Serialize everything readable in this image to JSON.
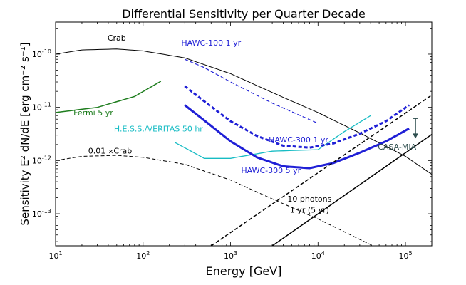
{
  "chart_data": {
    "type": "line",
    "title": "Differential Sensitivity per Quarter Decade",
    "xlabel": "Energy [GeV]",
    "ylabel": "Sensitivity E² dN/dE [erg cm⁻² s⁻¹]",
    "xscale": "log",
    "yscale": "log",
    "xlim": [
      10,
      200000
    ],
    "ylim": [
      2.5e-14,
      4e-10
    ],
    "x_ticks": [
      {
        "value": 10,
        "base": "10",
        "exp": "1"
      },
      {
        "value": 100,
        "base": "10",
        "exp": "2"
      },
      {
        "value": 1000,
        "base": "10",
        "exp": "3"
      },
      {
        "value": 10000,
        "base": "10",
        "exp": "4"
      },
      {
        "value": 100000,
        "base": "10",
        "exp": "5"
      }
    ],
    "y_ticks": [
      {
        "value": 1e-13,
        "base": "10",
        "exp": "-13"
      },
      {
        "value": 1e-12,
        "base": "10",
        "exp": "-12"
      },
      {
        "value": 1e-11,
        "base": "10",
        "exp": "-11"
      },
      {
        "value": 1e-10,
        "base": "10",
        "exp": "-10"
      }
    ],
    "series": [
      {
        "name": "Crab",
        "color": "#000000",
        "dash": "solid",
        "width": 1,
        "x": [
          10,
          20,
          50,
          100,
          300,
          1000,
          3000,
          10000,
          30000,
          100000,
          200000
        ],
        "y": [
          1e-10,
          1.2e-10,
          1.25e-10,
          1.15e-10,
          8.5e-11,
          4.3e-11,
          1.9e-11,
          8e-12,
          3.3e-12,
          1.2e-12,
          5.5e-13
        ]
      },
      {
        "name": "0.01 × Crab",
        "color": "#000000",
        "dash": "dashed",
        "width": 1,
        "x": [
          10,
          20,
          50,
          100,
          300,
          1000,
          3000,
          10000,
          30000,
          50000
        ],
        "y": [
          1e-12,
          1.2e-12,
          1.25e-12,
          1.15e-12,
          8.5e-13,
          4.3e-13,
          1.9e-13,
          8e-14,
          3.3e-14,
          2.2e-14
        ]
      },
      {
        "name": "Fermi 5 yr",
        "color": "#1e7d1e",
        "dash": "solid",
        "width": 1.5,
        "x": [
          10,
          30,
          80,
          160
        ],
        "y": [
          8e-12,
          1e-11,
          1.6e-11,
          3.1e-11
        ]
      },
      {
        "name": "H.E.S.S./VERITAS 50 hr",
        "color": "#17bcc4",
        "dash": "solid",
        "width": 1.3,
        "x": [
          230,
          500,
          1000,
          3000,
          10000,
          20000,
          40000
        ],
        "y": [
          2.2e-12,
          1.1e-12,
          1.1e-12,
          1.5e-12,
          1.6e-12,
          3.5e-12,
          7e-12
        ]
      },
      {
        "name": "HAWC-100 1 yr",
        "color": "#1f1fd6",
        "dash": "dashed",
        "width": 1.2,
        "x": [
          300,
          500,
          1000,
          3000,
          10000
        ],
        "y": [
          8e-11,
          5.6e-11,
          3e-11,
          1.2e-11,
          5e-12
        ]
      },
      {
        "name": "HAWC-300 1 yr",
        "color": "#1f1fd6",
        "dash": "thick-dashed",
        "width": 3,
        "x": [
          300,
          500,
          1000,
          2000,
          4000,
          8000,
          15000,
          30000,
          60000,
          110000
        ],
        "y": [
          2.5e-11,
          1.3e-11,
          5.5e-12,
          2.9e-12,
          1.9e-12,
          1.75e-12,
          2.1e-12,
          3.2e-12,
          5.5e-12,
          1.1e-11
        ]
      },
      {
        "name": "HAWC-300 5 yr",
        "color": "#1f1fd6",
        "dash": "solid",
        "width": 3,
        "x": [
          300,
          500,
          1000,
          2000,
          4000,
          8000,
          15000,
          30000,
          60000,
          110000
        ],
        "y": [
          1.1e-11,
          5.7e-12,
          2.3e-12,
          1.15e-12,
          7.8e-13,
          7.2e-13,
          9e-13,
          1.4e-12,
          2.3e-12,
          4e-12
        ]
      },
      {
        "name": "10 photons 1 yr",
        "color": "#000000",
        "dash": "dashed",
        "width": 1.5,
        "x": [
          600,
          200000
        ],
        "y": [
          2.5e-14,
          1.7e-11
        ]
      },
      {
        "name": "10 photons 5 yr",
        "color": "#000000",
        "dash": "solid",
        "width": 1.5,
        "x": [
          3000,
          200000
        ],
        "y": [
          2.5e-14,
          3.1e-12
        ]
      }
    ],
    "upper_limit": {
      "name": "CASA-MIA",
      "color": "#2f4f4f",
      "x": 130000,
      "y_top": 6.2e-12,
      "y_bottom": 2.6e-12
    },
    "annotations": [
      {
        "id": "crab",
        "text": "Crab",
        "x": 50,
        "y": 1.8e-10,
        "color": "#000000"
      },
      {
        "id": "hawc100",
        "text": "HAWC-100 1 yr",
        "x": 600,
        "y": 1.45e-10,
        "color": "#1f1fd6"
      },
      {
        "id": "fermi",
        "text": "Fermi 5 yr",
        "x": 27,
        "y": 7e-12,
        "color": "#1e7d1e"
      },
      {
        "id": "hess",
        "text": "H.E.S.S./VERITAS 50 hr",
        "x": 150,
        "y": 3.5e-12,
        "color": "#17bcc4"
      },
      {
        "id": "hawc300_1",
        "text": "HAWC-300 1 yr",
        "x": 6000,
        "y": 2.2e-12,
        "color": "#1f1fd6"
      },
      {
        "id": "casa",
        "text": "CASA-MIA",
        "x": 80000,
        "y": 1.6e-12,
        "color": "#2f4f4f"
      },
      {
        "id": "hawc300_5",
        "text": "HAWC-300 5 yr",
        "x": 2900,
        "y": 5.8e-13,
        "color": "#1f1fd6"
      },
      {
        "id": "photons1",
        "text": "10 photons",
        "x": 8000,
        "y": 1.7e-13,
        "color": "#000000"
      },
      {
        "id": "photons2",
        "text": "1 yr (5 yr)",
        "x": 8000,
        "y": 1.05e-13,
        "color": "#000000"
      }
    ],
    "crab_scaled_label": {
      "prefix": "0.01 ",
      "times": "×",
      "name": "Crab",
      "x": 42,
      "y": 1.35e-12,
      "color": "#000000"
    }
  }
}
